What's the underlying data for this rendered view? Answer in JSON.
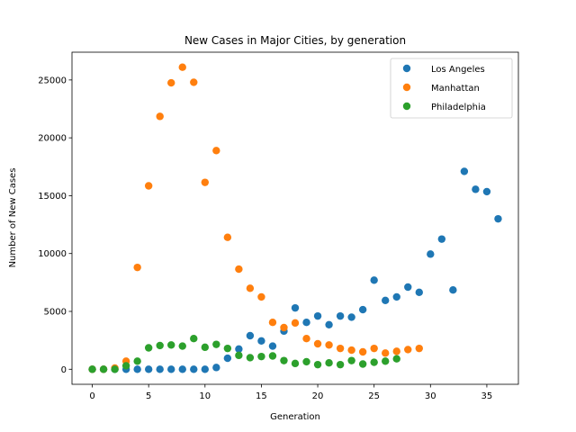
{
  "chart_data": {
    "type": "scatter",
    "title": "New Cases in Major Cities, by generation",
    "xlabel": "Generation",
    "ylabel": "Number of New Cases",
    "xlim": [
      -1.8,
      37.8
    ],
    "ylim": [
      -1300,
      27400
    ],
    "xticks": [
      0,
      5,
      10,
      15,
      20,
      25,
      30,
      35
    ],
    "yticks": [
      0,
      5000,
      10000,
      15000,
      20000,
      25000
    ],
    "grid": false,
    "legend_position": "top-right",
    "series": [
      {
        "name": "Los Angeles",
        "color": "#1f77b4",
        "x": [
          0,
          1,
          2,
          3,
          4,
          5,
          6,
          7,
          8,
          9,
          10,
          11,
          12,
          13,
          14,
          15,
          16,
          17,
          18,
          19,
          20,
          21,
          22,
          23,
          24,
          25,
          26,
          27,
          28,
          29,
          30,
          31,
          32,
          33,
          34,
          35,
          36
        ],
        "y": [
          0,
          0,
          0,
          0,
          0,
          0,
          0,
          0,
          0,
          0,
          0,
          150,
          950,
          1750,
          2900,
          2450,
          2000,
          3300,
          5300,
          4050,
          4600,
          3850,
          4600,
          4500,
          5150,
          7700,
          5950,
          6250,
          7100,
          6650,
          9950,
          11250,
          6850,
          17100,
          15550,
          15350,
          13000
        ]
      },
      {
        "name": "Manhattan",
        "color": "#ff7f0e",
        "x": [
          0,
          1,
          2,
          3,
          4,
          5,
          6,
          7,
          8,
          9,
          10,
          11,
          12,
          13,
          14,
          15,
          16,
          17,
          18,
          19,
          20,
          21,
          22,
          23,
          24,
          25,
          26,
          27,
          28,
          29
        ],
        "y": [
          0,
          0,
          100,
          700,
          8800,
          15850,
          21850,
          24750,
          26100,
          24800,
          16150,
          18900,
          11400,
          8650,
          7000,
          6250,
          4050,
          3600,
          4000,
          2650,
          2200,
          2100,
          1800,
          1650,
          1500,
          1800,
          1400,
          1550,
          1700,
          1800
        ]
      },
      {
        "name": "Philadelphia",
        "color": "#2ca02c",
        "x": [
          0,
          1,
          2,
          3,
          4,
          5,
          6,
          7,
          8,
          9,
          10,
          11,
          12,
          13,
          14,
          15,
          16,
          17,
          18,
          19,
          20,
          21,
          22,
          23,
          24,
          25,
          26,
          27
        ],
        "y": [
          0,
          0,
          0,
          300,
          700,
          1850,
          2050,
          2100,
          2000,
          2650,
          1900,
          2150,
          1800,
          1200,
          1000,
          1100,
          1150,
          750,
          500,
          650,
          400,
          550,
          400,
          750,
          450,
          600,
          700,
          900
        ]
      }
    ]
  }
}
